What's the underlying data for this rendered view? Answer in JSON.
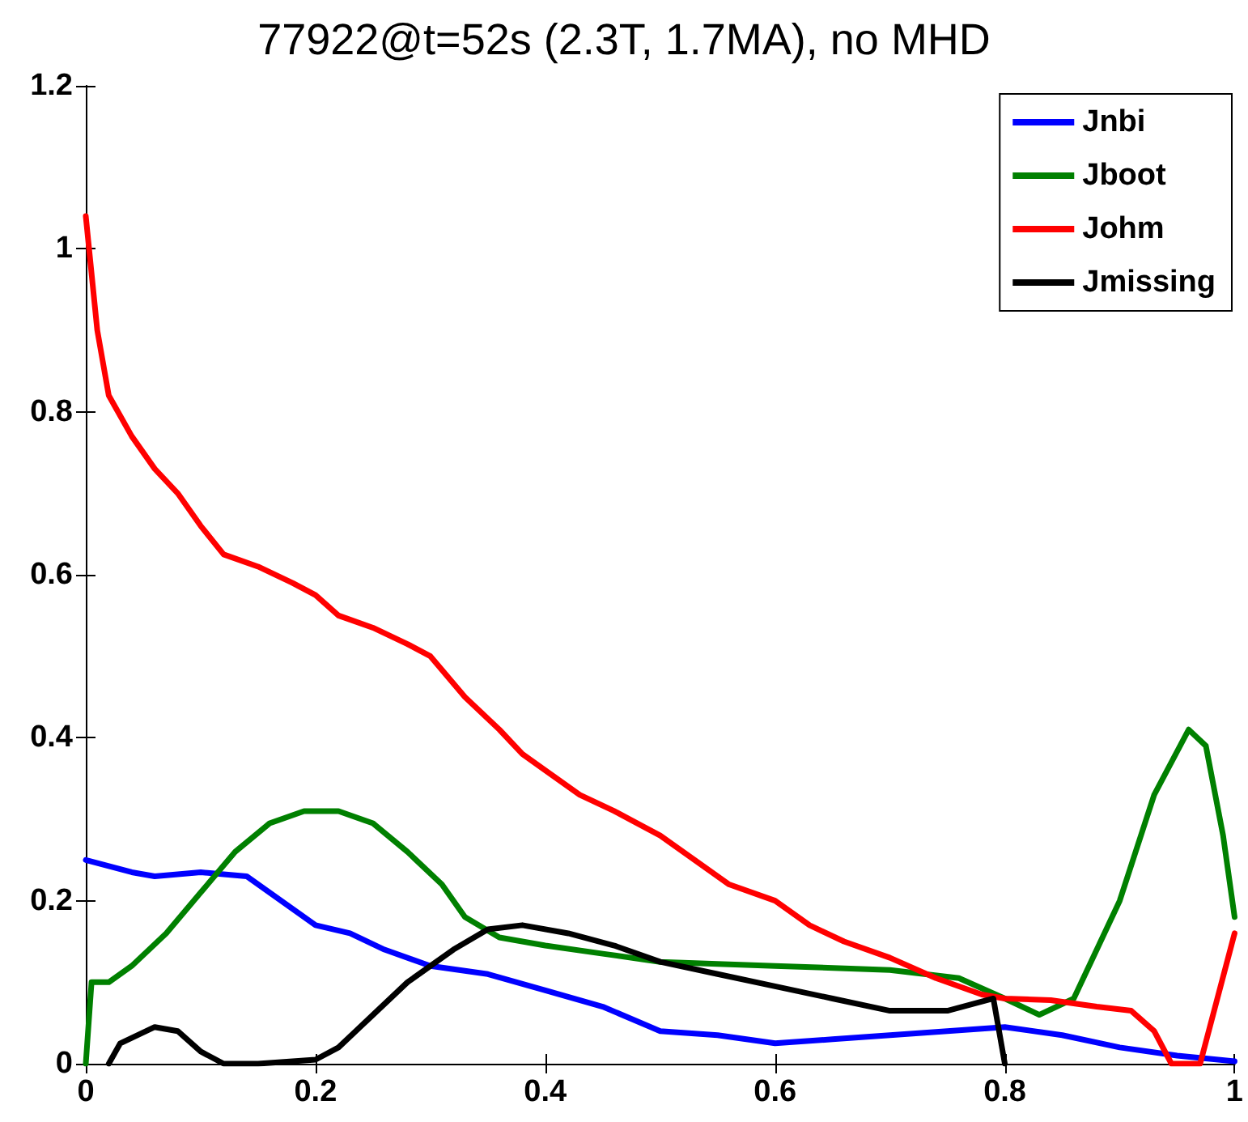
{
  "chart_data": {
    "type": "line",
    "title": "77922@t=52s (2.3T, 1.7MA), no MHD",
    "xlim": [
      0,
      1
    ],
    "xticks": [
      0,
      0.2,
      0.4,
      0.6,
      0.8,
      1
    ],
    "ylim": [
      0,
      1.2
    ],
    "yticks": [
      0,
      0.2,
      0.4,
      0.6,
      0.8,
      1,
      1.2
    ],
    "grid": false,
    "legend": "top right",
    "marker": "none",
    "line_style": "solid",
    "series": [
      {
        "name": "Jnbi",
        "color": "#0000ff",
        "x": [
          0,
          0.04,
          0.06,
          0.1,
          0.14,
          0.17,
          0.2,
          0.23,
          0.26,
          0.3,
          0.35,
          0.4,
          0.45,
          0.5,
          0.55,
          0.6,
          0.65,
          0.7,
          0.75,
          0.8,
          0.85,
          0.9,
          0.95,
          1.0
        ],
        "values": [
          0.25,
          0.235,
          0.23,
          0.235,
          0.23,
          0.2,
          0.17,
          0.16,
          0.14,
          0.12,
          0.11,
          0.09,
          0.07,
          0.04,
          0.035,
          0.025,
          0.03,
          0.035,
          0.04,
          0.045,
          0.035,
          0.02,
          0.01,
          0.003
        ]
      },
      {
        "name": "Jboot",
        "color": "#008000",
        "x": [
          0,
          0.005,
          0.01,
          0.02,
          0.04,
          0.07,
          0.1,
          0.13,
          0.16,
          0.19,
          0.22,
          0.25,
          0.28,
          0.31,
          0.33,
          0.36,
          0.4,
          0.45,
          0.5,
          0.6,
          0.7,
          0.76,
          0.8,
          0.83,
          0.86,
          0.9,
          0.93,
          0.96,
          0.975,
          0.99,
          1.0
        ],
        "values": [
          0,
          0.1,
          0.1,
          0.1,
          0.12,
          0.16,
          0.21,
          0.26,
          0.295,
          0.31,
          0.31,
          0.295,
          0.26,
          0.22,
          0.18,
          0.155,
          0.145,
          0.135,
          0.125,
          0.12,
          0.115,
          0.105,
          0.08,
          0.06,
          0.08,
          0.2,
          0.33,
          0.41,
          0.39,
          0.28,
          0.18
        ]
      },
      {
        "name": "Johm",
        "color": "#ff0000",
        "x": [
          0,
          0.01,
          0.02,
          0.04,
          0.06,
          0.08,
          0.1,
          0.12,
          0.15,
          0.18,
          0.2,
          0.22,
          0.25,
          0.28,
          0.3,
          0.33,
          0.36,
          0.38,
          0.4,
          0.43,
          0.46,
          0.5,
          0.53,
          0.56,
          0.6,
          0.63,
          0.66,
          0.7,
          0.74,
          0.78,
          0.8,
          0.84,
          0.88,
          0.91,
          0.93,
          0.945,
          0.97,
          0.985,
          1.0
        ],
        "values": [
          1.04,
          0.9,
          0.82,
          0.77,
          0.73,
          0.7,
          0.66,
          0.625,
          0.61,
          0.59,
          0.575,
          0.55,
          0.535,
          0.515,
          0.5,
          0.45,
          0.41,
          0.38,
          0.36,
          0.33,
          0.31,
          0.28,
          0.25,
          0.22,
          0.2,
          0.17,
          0.15,
          0.13,
          0.105,
          0.085,
          0.08,
          0.078,
          0.07,
          0.065,
          0.04,
          0,
          0,
          0.08,
          0.16
        ]
      },
      {
        "name": "Jmissing",
        "color": "#000000",
        "x": [
          0.02,
          0.03,
          0.06,
          0.08,
          0.1,
          0.12,
          0.15,
          0.2,
          0.22,
          0.25,
          0.28,
          0.32,
          0.35,
          0.38,
          0.42,
          0.46,
          0.5,
          0.55,
          0.6,
          0.65,
          0.7,
          0.75,
          0.79,
          0.8
        ],
        "values": [
          0,
          0.025,
          0.045,
          0.04,
          0.015,
          0,
          0,
          0.005,
          0.02,
          0.06,
          0.1,
          0.14,
          0.165,
          0.17,
          0.16,
          0.145,
          0.125,
          0.11,
          0.095,
          0.08,
          0.065,
          0.065,
          0.08,
          0
        ]
      }
    ]
  }
}
